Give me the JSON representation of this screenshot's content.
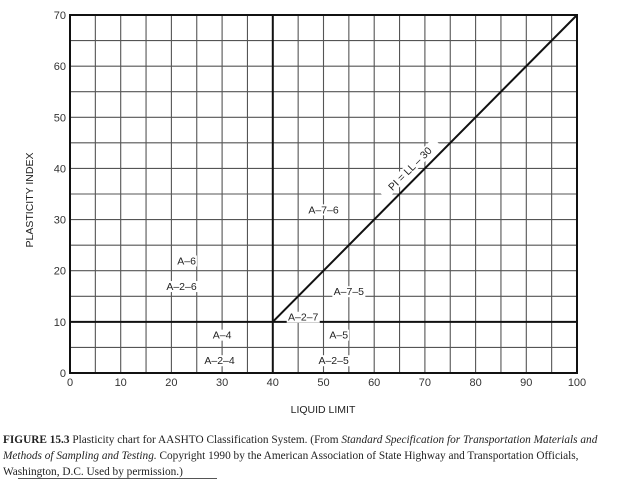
{
  "chart_data": {
    "type": "line",
    "title": "Plasticity chart for AASHTO Classification System",
    "xlabel": "LIQUID LIMIT",
    "ylabel": "PLASTICITY INDEX",
    "xlim": [
      0,
      100
    ],
    "ylim": [
      0,
      70
    ],
    "x_ticks": [
      0,
      10,
      20,
      30,
      40,
      50,
      60,
      70,
      80,
      90,
      100
    ],
    "y_ticks": [
      0,
      10,
      20,
      30,
      40,
      50,
      60,
      70
    ],
    "grid": {
      "on": true,
      "x_minor_step": 5,
      "y_minor_step": 5
    },
    "boundaries": [
      {
        "name": "LL = 40",
        "x": [
          40,
          40
        ],
        "y": [
          0,
          70
        ]
      },
      {
        "name": "PI = 10",
        "x": [
          0,
          100
        ],
        "y": [
          10,
          10
        ]
      }
    ],
    "series": [
      {
        "name": "PI = LL - 30",
        "x": [
          40,
          100
        ],
        "y": [
          10,
          70
        ]
      }
    ],
    "annotations": [
      {
        "text": "PI = LL – 30",
        "x": 67,
        "y": 40,
        "rotation": -45
      },
      {
        "text": "A–7–6",
        "x": 50,
        "y": 32
      },
      {
        "text": "A–6",
        "x": 23,
        "y": 22
      },
      {
        "text": "A–2–6",
        "x": 22,
        "y": 17
      },
      {
        "text": "A–7–5",
        "x": 55,
        "y": 16
      },
      {
        "text": "A–2–7",
        "x": 46,
        "y": 11
      },
      {
        "text": "A–4",
        "x": 30,
        "y": 7.5
      },
      {
        "text": "A–2–4",
        "x": 29.5,
        "y": 2.5
      },
      {
        "text": "A–5",
        "x": 53,
        "y": 7.5
      },
      {
        "text": "A–2–5",
        "x": 52,
        "y": 2.5
      }
    ]
  },
  "caption": {
    "figure_label": "FIGURE 15.3",
    "text_1": "  Plasticity chart for AASHTO Classification System. (From ",
    "italic_1": "Standard Specification for Transportation Materials and Methods of Sampling and Testing.",
    "text_2": " Copyright 1990 by the American Association of State Highway and Transportation Officials, Wa",
    "underlined": "shington, D.C. Used by permission.)"
  }
}
